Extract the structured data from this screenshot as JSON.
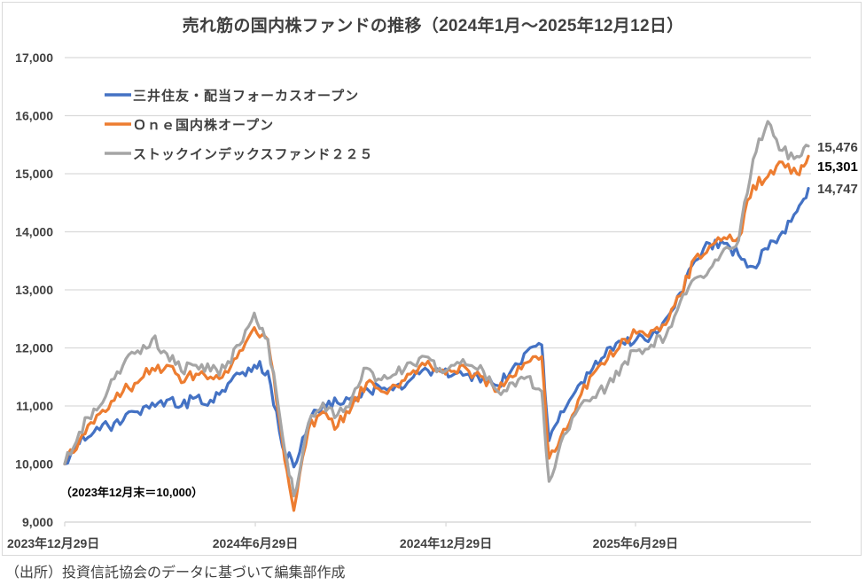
{
  "chart_data": {
    "type": "line",
    "title": "売れ筋の国内株ファンドの推移（2024年1月～2025年12月12日）",
    "xlabel": "",
    "ylabel": "",
    "ylim": [
      9000,
      17000
    ],
    "yticks": [
      9000,
      10000,
      11000,
      12000,
      13000,
      14000,
      15000,
      16000,
      17000
    ],
    "ytick_labels": [
      "9,000",
      "10,000",
      "11,000",
      "12,000",
      "13,000",
      "14,000",
      "15,000",
      "16,000",
      "17,000"
    ],
    "xlim": [
      "2023-12-29",
      "2025-12-12"
    ],
    "xticks": [
      "2023-12-29",
      "2024-06-29",
      "2024-12-29",
      "2025-06-29"
    ],
    "xtick_labels": [
      "2023年12月29日",
      "2024年6月29日",
      "2024年12月29日",
      "2025年6月29日"
    ],
    "grid": true,
    "legend_position": "top-left",
    "annotation": "（2023年12月末＝10,000）",
    "x": [
      "2023-12-29",
      "2024-01-12",
      "2024-01-26",
      "2024-02-09",
      "2024-02-23",
      "2024-03-08",
      "2024-03-22",
      "2024-04-05",
      "2024-04-19",
      "2024-05-03",
      "2024-05-17",
      "2024-05-31",
      "2024-06-14",
      "2024-06-28",
      "2024-07-11",
      "2024-07-25",
      "2024-08-05",
      "2024-08-19",
      "2024-09-02",
      "2024-09-16",
      "2024-09-30",
      "2024-10-14",
      "2024-10-28",
      "2024-11-11",
      "2024-11-25",
      "2024-12-09",
      "2024-12-23",
      "2025-01-06",
      "2025-01-20",
      "2025-02-03",
      "2025-02-17",
      "2025-03-03",
      "2025-03-17",
      "2025-03-31",
      "2025-04-07",
      "2025-04-21",
      "2025-05-05",
      "2025-05-19",
      "2025-06-02",
      "2025-06-16",
      "2025-06-30",
      "2025-07-14",
      "2025-07-28",
      "2025-08-11",
      "2025-08-25",
      "2025-09-08",
      "2025-09-22",
      "2025-10-06",
      "2025-10-20",
      "2025-11-03",
      "2025-11-17",
      "2025-12-01",
      "2025-12-12"
    ],
    "series": [
      {
        "name": "三井住友・配当フォーカスオープン",
        "color": "#4472c4",
        "values": [
          10000,
          10350,
          10550,
          10650,
          10750,
          10900,
          11050,
          11100,
          11000,
          11150,
          11100,
          11250,
          11550,
          11700,
          11600,
          10300,
          9950,
          10700,
          11050,
          11050,
          11150,
          11300,
          11300,
          11350,
          11450,
          11650,
          11600,
          11550,
          11550,
          11500,
          11350,
          11650,
          11950,
          12050,
          10400,
          10900,
          11350,
          11650,
          12000,
          12100,
          12150,
          12200,
          12500,
          12950,
          13500,
          13800,
          13800,
          13600,
          13400,
          13700,
          14000,
          14350,
          14747
        ]
      },
      {
        "name": "Ｏｎｅ国内株オープン",
        "color": "#ed7d31",
        "values": [
          10000,
          10400,
          10700,
          10950,
          11250,
          11400,
          11650,
          11700,
          11400,
          11550,
          11500,
          11600,
          11950,
          12350,
          12150,
          10400,
          9200,
          10600,
          10900,
          10650,
          11000,
          11400,
          11250,
          11350,
          11550,
          11700,
          11600,
          11600,
          11600,
          11500,
          11250,
          11500,
          11750,
          11850,
          10100,
          10600,
          11100,
          11550,
          11800,
          12150,
          12250,
          12300,
          12400,
          12900,
          13550,
          13750,
          13900,
          13900,
          14800,
          14950,
          15200,
          15000,
          15301
        ]
      },
      {
        "name": "ストックインデックスファンド２２５",
        "color": "#a5a5a5",
        "values": [
          10000,
          10550,
          10950,
          11300,
          11700,
          11950,
          12150,
          11900,
          11600,
          11700,
          11600,
          11650,
          12050,
          12600,
          12150,
          10500,
          9450,
          10700,
          11050,
          10850,
          11150,
          11650,
          11450,
          11550,
          11750,
          11850,
          11650,
          11700,
          11700,
          11600,
          11250,
          11400,
          11500,
          11250,
          9700,
          10500,
          10950,
          11150,
          11350,
          11700,
          11950,
          12050,
          12200,
          12800,
          13200,
          13350,
          13700,
          13850,
          15250,
          15900,
          15400,
          15300,
          15476
        ]
      }
    ],
    "end_labels": [
      "14,747",
      "15,301",
      "15,476"
    ]
  },
  "source_note": "（出所）投資信託協会のデータに基づいて編集部作成"
}
